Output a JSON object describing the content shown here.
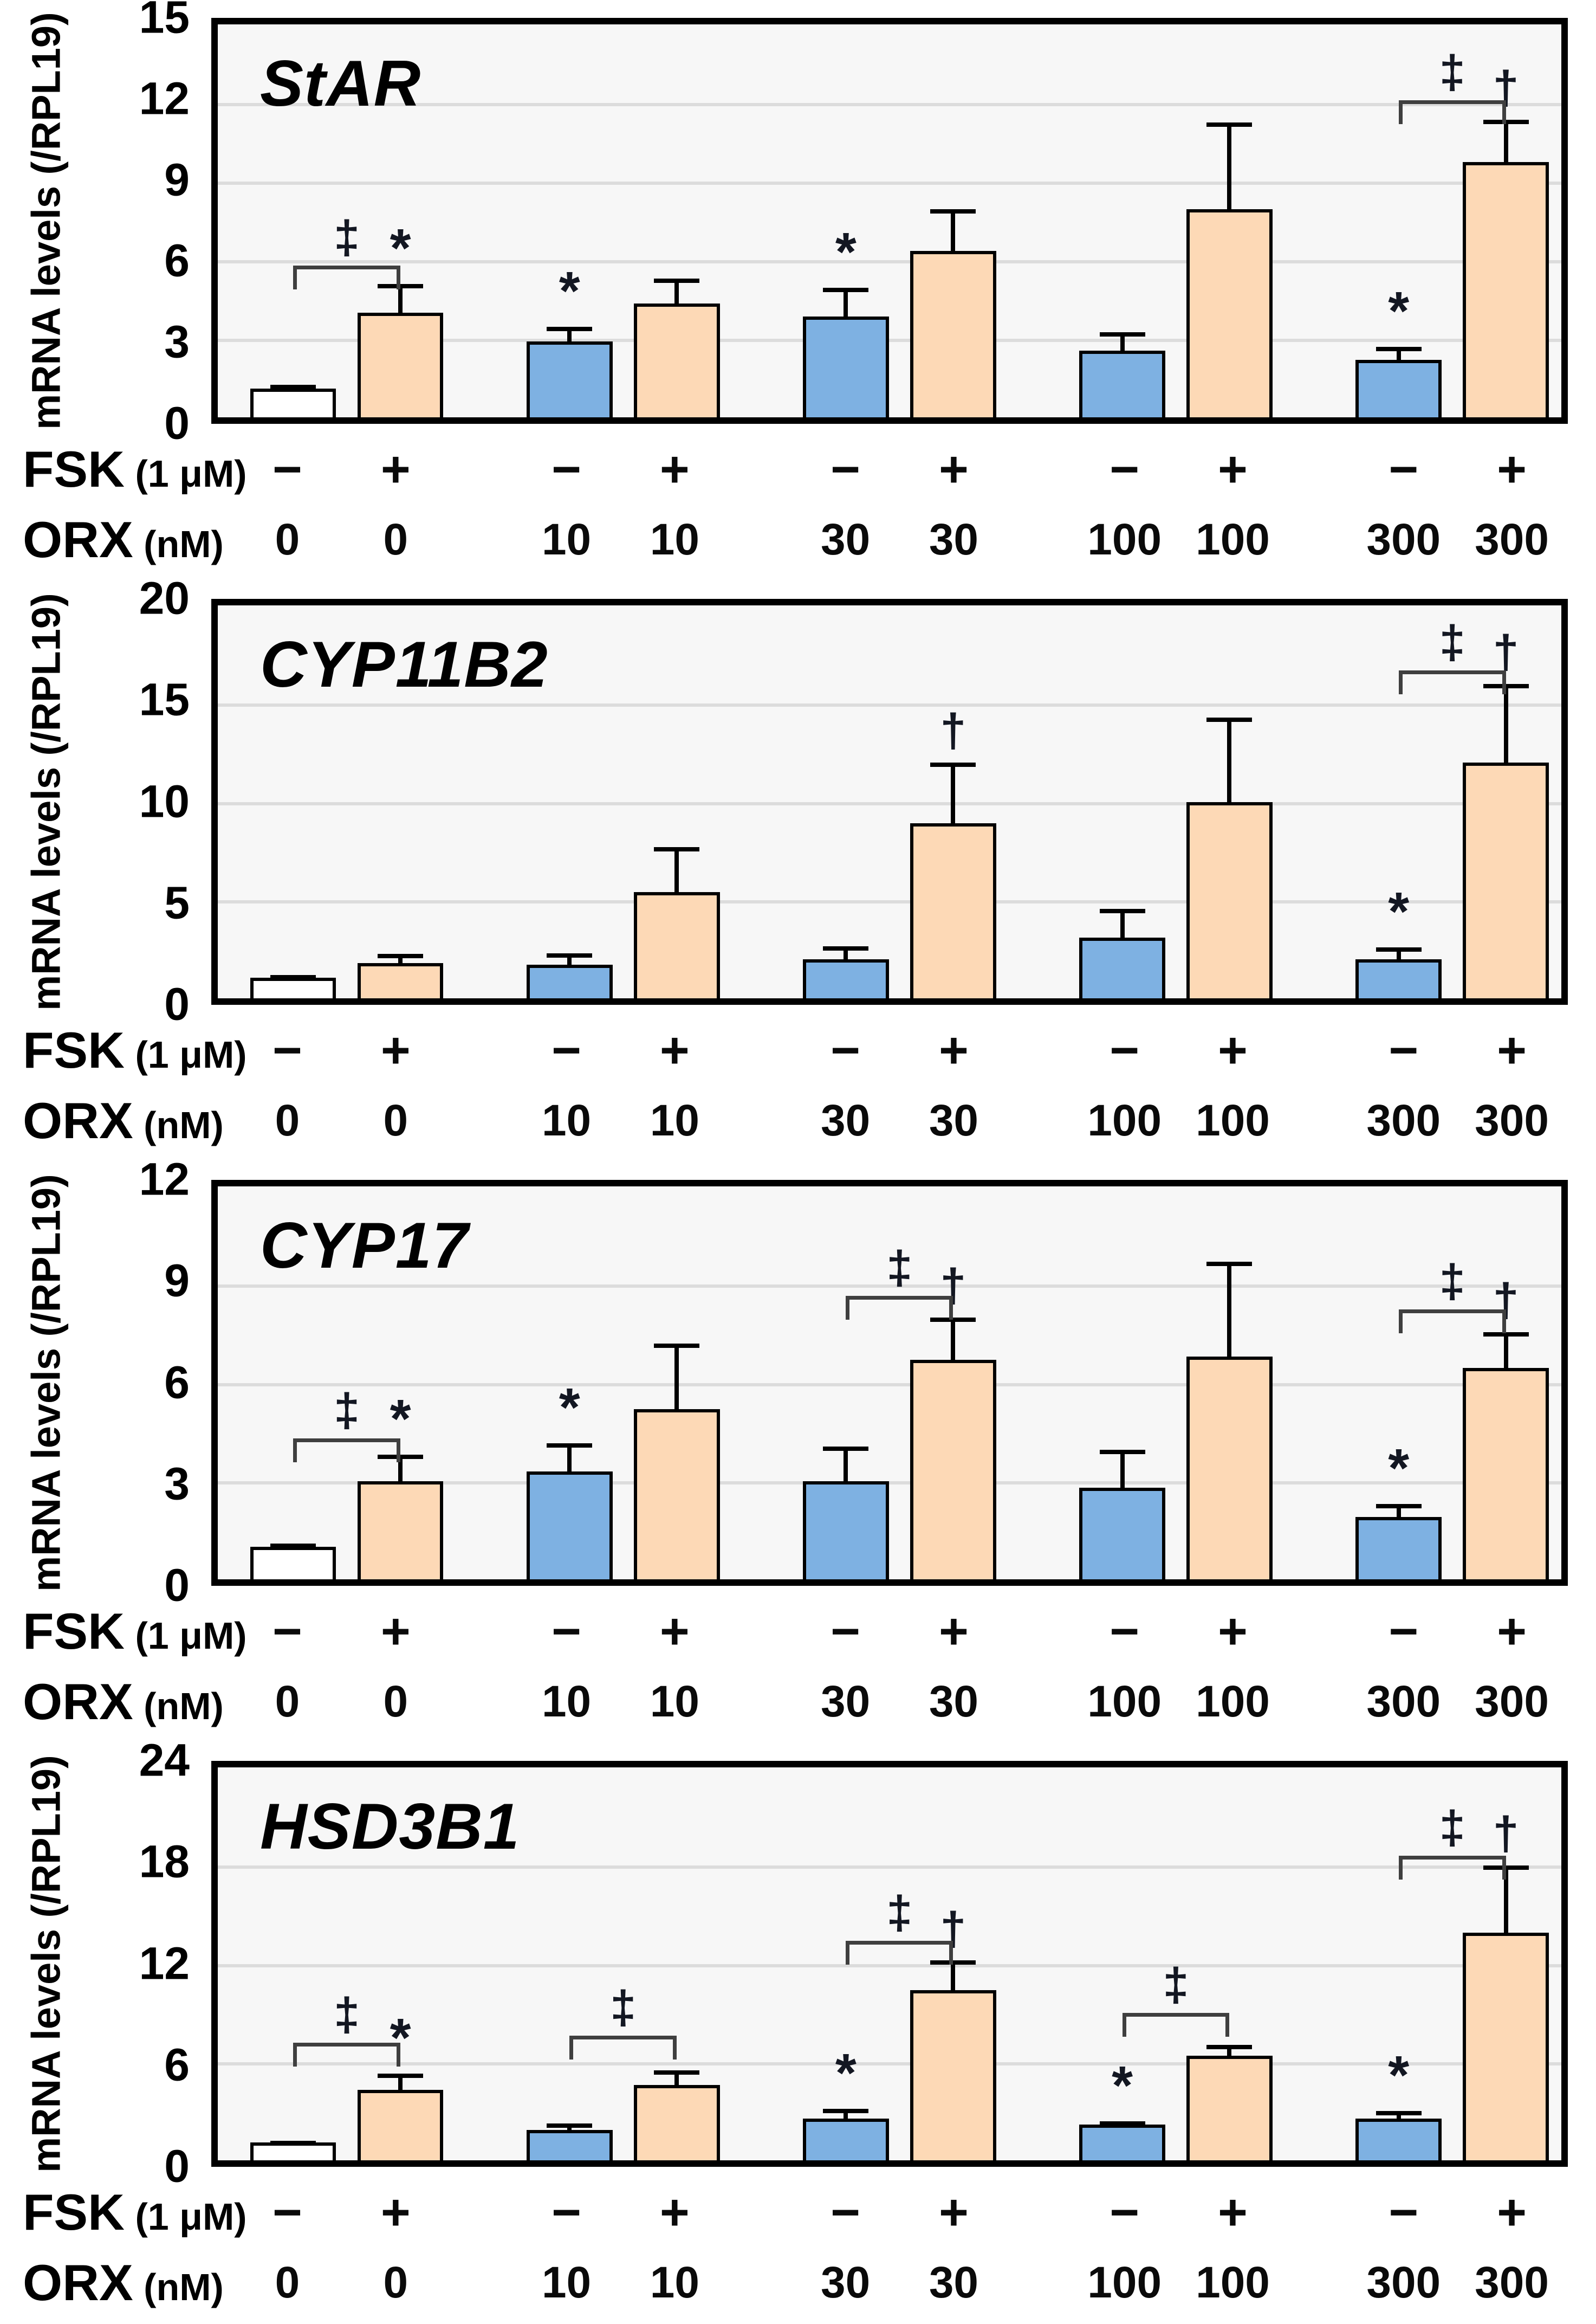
{
  "figure": {
    "ylabel": "mRNA levels (/RPL19)",
    "row_labels": {
      "fsk": "FSK",
      "fsk_unit": "(1 μM)",
      "orx": "ORX",
      "orx_unit": "(nM)"
    },
    "colors": {
      "bar_control": "#ffffff",
      "bar_basal": "#7eb1e2",
      "bar_fsk": "#fdd9b6",
      "bar_border": "#000000",
      "plot_bg": "#f7f7f7",
      "gridline": "#dcdcdc",
      "annotation": "#131722",
      "bracket": "#3f3f3f"
    }
  },
  "chart_data": [
    {
      "type": "bar",
      "title": "StAR",
      "ylabel": "mRNA levels (/RPL19)",
      "ylim": [
        0,
        15
      ],
      "yticks": [
        0,
        3,
        6,
        9,
        12,
        15
      ],
      "grid": true,
      "legend": "none",
      "groups": [
        {
          "orx": "0",
          "bars": [
            {
              "fsk": "−",
              "value": 1.1,
              "err": 0.15,
              "style": "control",
              "sig": ""
            },
            {
              "fsk": "+",
              "value": 4.0,
              "err": 1.1,
              "style": "fsk",
              "sig": "*"
            }
          ],
          "bracket": {
            "symbol": "‡",
            "y": 5.8
          }
        },
        {
          "orx": "10",
          "bars": [
            {
              "fsk": "−",
              "value": 2.9,
              "err": 0.55,
              "style": "basal",
              "sig": "*"
            },
            {
              "fsk": "+",
              "value": 4.35,
              "err": 0.95,
              "style": "fsk",
              "sig": ""
            }
          ]
        },
        {
          "orx": "30",
          "bars": [
            {
              "fsk": "−",
              "value": 3.85,
              "err": 1.1,
              "style": "basal",
              "sig": "*"
            },
            {
              "fsk": "+",
              "value": 6.35,
              "err": 1.6,
              "style": "fsk",
              "sig": ""
            }
          ]
        },
        {
          "orx": "100",
          "bars": [
            {
              "fsk": "−",
              "value": 2.55,
              "err": 0.7,
              "style": "basal",
              "sig": ""
            },
            {
              "fsk": "+",
              "value": 7.95,
              "err": 3.3,
              "style": "fsk",
              "sig": ""
            }
          ]
        },
        {
          "orx": "300",
          "bars": [
            {
              "fsk": "−",
              "value": 2.2,
              "err": 0.5,
              "style": "basal",
              "sig": "*"
            },
            {
              "fsk": "+",
              "value": 9.75,
              "err": 1.6,
              "style": "fsk",
              "sig": "†"
            }
          ],
          "bracket": {
            "symbol": "‡",
            "y": 12.1
          }
        }
      ]
    },
    {
      "type": "bar",
      "title": "CYP11B2",
      "ylabel": "mRNA levels (/RPL19)",
      "ylim": [
        0,
        20
      ],
      "yticks": [
        0,
        5,
        10,
        15,
        20
      ],
      "grid": true,
      "legend": "none",
      "groups": [
        {
          "orx": "0",
          "bars": [
            {
              "fsk": "−",
              "value": 1.05,
              "err": 0.15,
              "style": "control",
              "sig": ""
            },
            {
              "fsk": "+",
              "value": 1.8,
              "err": 0.45,
              "style": "fsk",
              "sig": ""
            }
          ]
        },
        {
          "orx": "10",
          "bars": [
            {
              "fsk": "−",
              "value": 1.7,
              "err": 0.6,
              "style": "basal",
              "sig": ""
            },
            {
              "fsk": "+",
              "value": 5.4,
              "err": 2.3,
              "style": "fsk",
              "sig": ""
            }
          ]
        },
        {
          "orx": "30",
          "bars": [
            {
              "fsk": "−",
              "value": 2.0,
              "err": 0.65,
              "style": "basal",
              "sig": ""
            },
            {
              "fsk": "+",
              "value": 8.9,
              "err": 3.1,
              "style": "fsk",
              "sig": "†"
            }
          ]
        },
        {
          "orx": "100",
          "bars": [
            {
              "fsk": "−",
              "value": 3.1,
              "err": 1.45,
              "style": "basal",
              "sig": ""
            },
            {
              "fsk": "+",
              "value": 10.0,
              "err": 4.3,
              "style": "fsk",
              "sig": ""
            }
          ]
        },
        {
          "orx": "300",
          "bars": [
            {
              "fsk": "−",
              "value": 2.0,
              "err": 0.6,
              "style": "basal",
              "sig": "*"
            },
            {
              "fsk": "+",
              "value": 12.0,
              "err": 4.0,
              "style": "fsk",
              "sig": "†"
            }
          ],
          "bracket": {
            "symbol": "‡",
            "y": 16.7
          }
        }
      ]
    },
    {
      "type": "bar",
      "title": "CYP17",
      "ylabel": "mRNA levels (/RPL19)",
      "ylim": [
        0,
        12
      ],
      "yticks": [
        0,
        3,
        6,
        9,
        12
      ],
      "grid": true,
      "legend": "none",
      "groups": [
        {
          "orx": "0",
          "bars": [
            {
              "fsk": "−",
              "value": 1.0,
              "err": 0.1,
              "style": "control",
              "sig": ""
            },
            {
              "fsk": "+",
              "value": 3.0,
              "err": 0.8,
              "style": "fsk",
              "sig": "*"
            }
          ],
          "bracket": {
            "symbol": "‡",
            "y": 4.3
          }
        },
        {
          "orx": "10",
          "bars": [
            {
              "fsk": "−",
              "value": 3.3,
              "err": 0.85,
              "style": "basal",
              "sig": "*"
            },
            {
              "fsk": "+",
              "value": 5.2,
              "err": 2.0,
              "style": "fsk",
              "sig": ""
            }
          ]
        },
        {
          "orx": "30",
          "bars": [
            {
              "fsk": "−",
              "value": 3.0,
              "err": 1.05,
              "style": "basal",
              "sig": ""
            },
            {
              "fsk": "+",
              "value": 6.7,
              "err": 1.3,
              "style": "fsk",
              "sig": "†"
            }
          ],
          "bracket": {
            "symbol": "‡",
            "y": 8.65
          }
        },
        {
          "orx": "100",
          "bars": [
            {
              "fsk": "−",
              "value": 2.8,
              "err": 1.15,
              "style": "basal",
              "sig": ""
            },
            {
              "fsk": "+",
              "value": 6.8,
              "err": 2.9,
              "style": "fsk",
              "sig": ""
            }
          ]
        },
        {
          "orx": "300",
          "bars": [
            {
              "fsk": "−",
              "value": 1.9,
              "err": 0.4,
              "style": "basal",
              "sig": "*"
            },
            {
              "fsk": "+",
              "value": 6.45,
              "err": 1.1,
              "style": "fsk",
              "sig": "†"
            }
          ],
          "bracket": {
            "symbol": "‡",
            "y": 8.25
          }
        }
      ]
    },
    {
      "type": "bar",
      "title": "HSD3B1",
      "ylabel": "mRNA levels (/RPL19)",
      "ylim": [
        0,
        24
      ],
      "yticks": [
        0,
        6,
        12,
        18,
        24
      ],
      "grid": true,
      "legend": "none",
      "groups": [
        {
          "orx": "0",
          "bars": [
            {
              "fsk": "−",
              "value": 1.1,
              "err": 0.1,
              "style": "control",
              "sig": ""
            },
            {
              "fsk": "+",
              "value": 4.3,
              "err": 1.0,
              "style": "fsk",
              "sig": "*"
            }
          ],
          "bracket": {
            "symbol": "‡",
            "y": 7.2
          }
        },
        {
          "orx": "10",
          "bars": [
            {
              "fsk": "−",
              "value": 1.85,
              "err": 0.4,
              "style": "basal",
              "sig": ""
            },
            {
              "fsk": "+",
              "value": 4.6,
              "err": 0.9,
              "style": "fsk",
              "sig": ""
            }
          ],
          "bracket": {
            "symbol": "‡",
            "y": 7.6
          }
        },
        {
          "orx": "30",
          "bars": [
            {
              "fsk": "−",
              "value": 2.55,
              "err": 0.6,
              "style": "basal",
              "sig": "*"
            },
            {
              "fsk": "+",
              "value": 10.4,
              "err": 1.8,
              "style": "fsk",
              "sig": "†"
            }
          ],
          "bracket": {
            "symbol": "‡",
            "y": 13.4
          }
        },
        {
          "orx": "100",
          "bars": [
            {
              "fsk": "−",
              "value": 2.2,
              "err": 0.2,
              "style": "basal",
              "sig": "*"
            },
            {
              "fsk": "+",
              "value": 6.4,
              "err": 0.65,
              "style": "fsk",
              "sig": ""
            }
          ],
          "bracket": {
            "symbol": "‡",
            "y": 9.0
          }
        },
        {
          "orx": "300",
          "bars": [
            {
              "fsk": "−",
              "value": 2.55,
              "err": 0.45,
              "style": "basal",
              "sig": "*"
            },
            {
              "fsk": "+",
              "value": 13.9,
              "err": 4.1,
              "style": "fsk",
              "sig": "†"
            }
          ],
          "bracket": {
            "symbol": "‡",
            "y": 18.6
          }
        }
      ]
    }
  ]
}
